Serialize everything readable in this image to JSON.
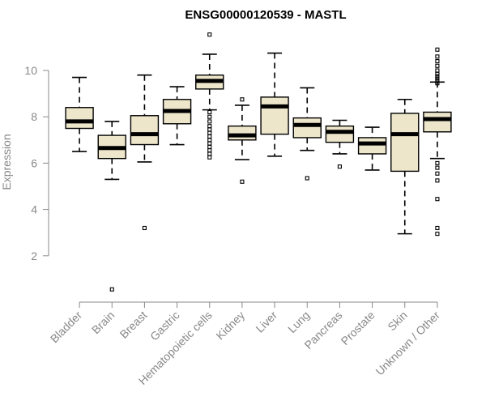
{
  "chart_data": {
    "type": "boxplot",
    "title": "ENSG00000120539 - MASTL",
    "xlabel": "",
    "ylabel": "Expression",
    "ylim": [
      0.1,
      11.8
    ],
    "yticks": [
      2,
      4,
      6,
      8,
      10
    ],
    "box_fill": "#ede6cb",
    "box_stroke": "#000000",
    "categories": [
      "Bladder",
      "Brain",
      "Breast",
      "Gastric",
      "Hematopoietic cells",
      "Kidney",
      "Liver",
      "Lung",
      "Pancreas",
      "Prostate",
      "Skin",
      "Unknown / Other"
    ],
    "boxes": [
      {
        "whisker_low": 6.5,
        "q1": 7.5,
        "median": 7.8,
        "q3": 8.4,
        "whisker_high": 9.7,
        "outliers": []
      },
      {
        "whisker_low": 5.3,
        "q1": 6.2,
        "median": 6.65,
        "q3": 7.2,
        "whisker_high": 7.8,
        "outliers": [
          0.55
        ]
      },
      {
        "whisker_low": 6.05,
        "q1": 6.8,
        "median": 7.25,
        "q3": 8.05,
        "whisker_high": 9.8,
        "outliers": [
          3.2
        ]
      },
      {
        "whisker_low": 6.8,
        "q1": 7.7,
        "median": 8.25,
        "q3": 8.75,
        "whisker_high": 9.3,
        "outliers": []
      },
      {
        "whisker_low": 8.3,
        "q1": 9.2,
        "median": 9.55,
        "q3": 9.8,
        "whisker_high": 10.7,
        "outliers": [
          11.55,
          8.2,
          8.0,
          7.8,
          7.6,
          7.45,
          7.3,
          7.15,
          7.0,
          6.85,
          6.7,
          6.55,
          6.4,
          6.25
        ]
      },
      {
        "whisker_low": 6.15,
        "q1": 7.0,
        "median": 7.2,
        "q3": 7.6,
        "whisker_high": 8.5,
        "outliers": [
          8.75,
          5.2
        ]
      },
      {
        "whisker_low": 6.3,
        "q1": 7.25,
        "median": 8.45,
        "q3": 8.85,
        "whisker_high": 10.75,
        "outliers": []
      },
      {
        "whisker_low": 6.55,
        "q1": 7.1,
        "median": 7.65,
        "q3": 7.95,
        "whisker_high": 9.25,
        "outliers": [
          5.35
        ]
      },
      {
        "whisker_low": 6.4,
        "q1": 6.9,
        "median": 7.35,
        "q3": 7.6,
        "whisker_high": 7.85,
        "outliers": [
          5.85
        ]
      },
      {
        "whisker_low": 5.7,
        "q1": 6.4,
        "median": 6.85,
        "q3": 7.1,
        "whisker_high": 7.55,
        "outliers": []
      },
      {
        "whisker_low": 2.95,
        "q1": 5.65,
        "median": 7.25,
        "q3": 8.15,
        "whisker_high": 8.75,
        "outliers": []
      },
      {
        "whisker_low": 6.2,
        "q1": 7.35,
        "median": 7.9,
        "q3": 8.2,
        "whisker_high": 9.5,
        "outliers": [
          10.9,
          10.6,
          10.4,
          10.2,
          10.0,
          9.85,
          9.75,
          9.65,
          9.55,
          9.45,
          6.0,
          5.8,
          5.55,
          5.25,
          4.45,
          3.2,
          2.95
        ]
      }
    ]
  }
}
